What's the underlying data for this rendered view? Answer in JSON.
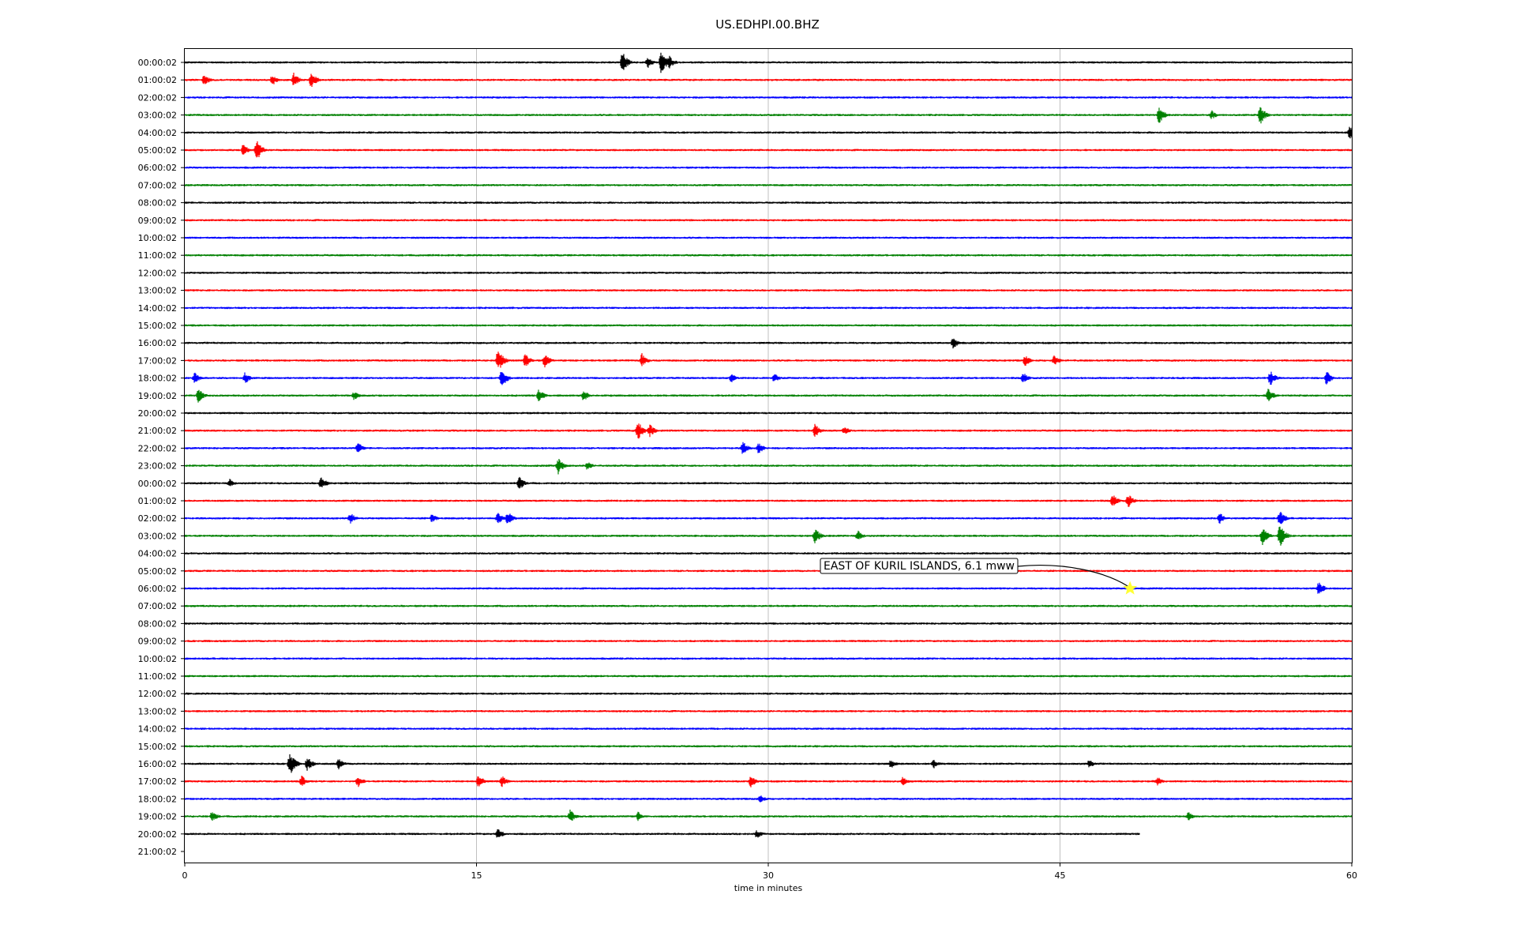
{
  "chart_data": {
    "type": "line",
    "title": "US.EDHPI.00.BHZ",
    "xlabel": "time in minutes",
    "xlim": [
      0,
      60
    ],
    "x_ticks": [
      "0",
      "15",
      "30",
      "45",
      "60"
    ],
    "x_tick_values": [
      0,
      15,
      30,
      45,
      60
    ],
    "grid_x": true,
    "row_labels": [
      "00:00:02",
      "01:00:02",
      "02:00:02",
      "03:00:02",
      "04:00:02",
      "05:00:02",
      "06:00:02",
      "07:00:02",
      "08:00:02",
      "09:00:02",
      "10:00:02",
      "11:00:02",
      "12:00:02",
      "13:00:02",
      "14:00:02",
      "15:00:02",
      "16:00:02",
      "17:00:02",
      "18:00:02",
      "19:00:02",
      "20:00:02",
      "21:00:02",
      "22:00:02",
      "23:00:02",
      "00:00:02",
      "01:00:02",
      "02:00:02",
      "03:00:02",
      "04:00:02",
      "05:00:02",
      "06:00:02",
      "07:00:02",
      "08:00:02",
      "09:00:02",
      "10:00:02",
      "11:00:02",
      "12:00:02",
      "13:00:02",
      "14:00:02",
      "15:00:02",
      "16:00:02",
      "17:00:02",
      "18:00:02",
      "19:00:02",
      "20:00:02",
      "21:00:02"
    ],
    "color_cycle": [
      "#000000",
      "#ff0000",
      "#0000ff",
      "#008000"
    ],
    "trace_end_minutes": {
      "row_index": 44,
      "end": 49.1
    },
    "empty_rows": [
      45
    ],
    "bursts": [
      {
        "row": 0,
        "t": 22.5,
        "amp": 0.9
      },
      {
        "row": 0,
        "t": 23.8,
        "amp": 0.5
      },
      {
        "row": 0,
        "t": 24.5,
        "amp": 1.0
      },
      {
        "row": 0,
        "t": 24.9,
        "amp": 0.6
      },
      {
        "row": 1,
        "t": 1.0,
        "amp": 0.5
      },
      {
        "row": 1,
        "t": 4.5,
        "amp": 0.5
      },
      {
        "row": 1,
        "t": 5.6,
        "amp": 0.6
      },
      {
        "row": 1,
        "t": 6.5,
        "amp": 0.7
      },
      {
        "row": 3,
        "t": 50.1,
        "amp": 0.8
      },
      {
        "row": 3,
        "t": 52.8,
        "amp": 0.4
      },
      {
        "row": 3,
        "t": 55.3,
        "amp": 0.8
      },
      {
        "row": 4,
        "t": 59.9,
        "amp": 0.6
      },
      {
        "row": 5,
        "t": 3.0,
        "amp": 0.5
      },
      {
        "row": 5,
        "t": 3.7,
        "amp": 0.9
      },
      {
        "row": 16,
        "t": 39.5,
        "amp": 0.5
      },
      {
        "row": 17,
        "t": 16.1,
        "amp": 1.0
      },
      {
        "row": 17,
        "t": 17.5,
        "amp": 0.6
      },
      {
        "row": 17,
        "t": 18.5,
        "amp": 0.6
      },
      {
        "row": 17,
        "t": 23.5,
        "amp": 0.6
      },
      {
        "row": 17,
        "t": 43.2,
        "amp": 0.5
      },
      {
        "row": 17,
        "t": 44.7,
        "amp": 0.5
      },
      {
        "row": 18,
        "t": 0.5,
        "amp": 0.5
      },
      {
        "row": 18,
        "t": 3.1,
        "amp": 0.5
      },
      {
        "row": 18,
        "t": 16.3,
        "amp": 0.8
      },
      {
        "row": 18,
        "t": 28.1,
        "amp": 0.4
      },
      {
        "row": 18,
        "t": 30.3,
        "amp": 0.4
      },
      {
        "row": 18,
        "t": 43.1,
        "amp": 0.5
      },
      {
        "row": 18,
        "t": 55.8,
        "amp": 0.7
      },
      {
        "row": 18,
        "t": 58.7,
        "amp": 0.6
      },
      {
        "row": 19,
        "t": 0.7,
        "amp": 0.6
      },
      {
        "row": 19,
        "t": 8.7,
        "amp": 0.4
      },
      {
        "row": 19,
        "t": 18.2,
        "amp": 0.6
      },
      {
        "row": 19,
        "t": 20.5,
        "amp": 0.5
      },
      {
        "row": 19,
        "t": 55.7,
        "amp": 0.7
      },
      {
        "row": 21,
        "t": 23.3,
        "amp": 0.8
      },
      {
        "row": 21,
        "t": 23.9,
        "amp": 0.6
      },
      {
        "row": 21,
        "t": 32.4,
        "amp": 0.6
      },
      {
        "row": 21,
        "t": 33.9,
        "amp": 0.4
      },
      {
        "row": 22,
        "t": 8.9,
        "amp": 0.5
      },
      {
        "row": 22,
        "t": 28.7,
        "amp": 0.6
      },
      {
        "row": 22,
        "t": 29.5,
        "amp": 0.5
      },
      {
        "row": 23,
        "t": 19.2,
        "amp": 0.7
      },
      {
        "row": 23,
        "t": 20.7,
        "amp": 0.4
      },
      {
        "row": 24,
        "t": 2.3,
        "amp": 0.4
      },
      {
        "row": 24,
        "t": 7.0,
        "amp": 0.6
      },
      {
        "row": 24,
        "t": 17.2,
        "amp": 0.6
      },
      {
        "row": 25,
        "t": 47.7,
        "amp": 0.6
      },
      {
        "row": 25,
        "t": 48.5,
        "amp": 0.6
      },
      {
        "row": 26,
        "t": 8.5,
        "amp": 0.5
      },
      {
        "row": 26,
        "t": 12.7,
        "amp": 0.4
      },
      {
        "row": 26,
        "t": 16.1,
        "amp": 0.5
      },
      {
        "row": 26,
        "t": 16.6,
        "amp": 0.6
      },
      {
        "row": 26,
        "t": 53.2,
        "amp": 0.5
      },
      {
        "row": 26,
        "t": 56.3,
        "amp": 0.7
      },
      {
        "row": 27,
        "t": 32.4,
        "amp": 0.7
      },
      {
        "row": 27,
        "t": 34.6,
        "amp": 0.5
      },
      {
        "row": 27,
        "t": 55.4,
        "amp": 0.8
      },
      {
        "row": 27,
        "t": 56.3,
        "amp": 1.0
      },
      {
        "row": 30,
        "t": 58.3,
        "amp": 0.6
      },
      {
        "row": 40,
        "t": 5.4,
        "amp": 1.0
      },
      {
        "row": 40,
        "t": 6.3,
        "amp": 0.6
      },
      {
        "row": 40,
        "t": 7.9,
        "amp": 0.5
      },
      {
        "row": 40,
        "t": 36.3,
        "amp": 0.4
      },
      {
        "row": 40,
        "t": 38.5,
        "amp": 0.4
      },
      {
        "row": 40,
        "t": 46.5,
        "amp": 0.4
      },
      {
        "row": 41,
        "t": 6.0,
        "amp": 0.5
      },
      {
        "row": 41,
        "t": 8.9,
        "amp": 0.5
      },
      {
        "row": 41,
        "t": 15.1,
        "amp": 0.6
      },
      {
        "row": 41,
        "t": 16.3,
        "amp": 0.5
      },
      {
        "row": 41,
        "t": 29.1,
        "amp": 0.5
      },
      {
        "row": 41,
        "t": 36.9,
        "amp": 0.4
      },
      {
        "row": 41,
        "t": 50.0,
        "amp": 0.4
      },
      {
        "row": 42,
        "t": 29.6,
        "amp": 0.4
      },
      {
        "row": 43,
        "t": 1.4,
        "amp": 0.5
      },
      {
        "row": 43,
        "t": 19.8,
        "amp": 0.6
      },
      {
        "row": 43,
        "t": 23.3,
        "amp": 0.4
      },
      {
        "row": 43,
        "t": 51.6,
        "amp": 0.4
      },
      {
        "row": 44,
        "t": 16.1,
        "amp": 0.5
      },
      {
        "row": 44,
        "t": 29.4,
        "amp": 0.4
      }
    ],
    "annotation": {
      "text": "EAST OF KURIL ISLANDS, 6.1 mww",
      "row": 30,
      "t": 48.6,
      "marker": "star",
      "marker_color": "#ffff33"
    }
  }
}
